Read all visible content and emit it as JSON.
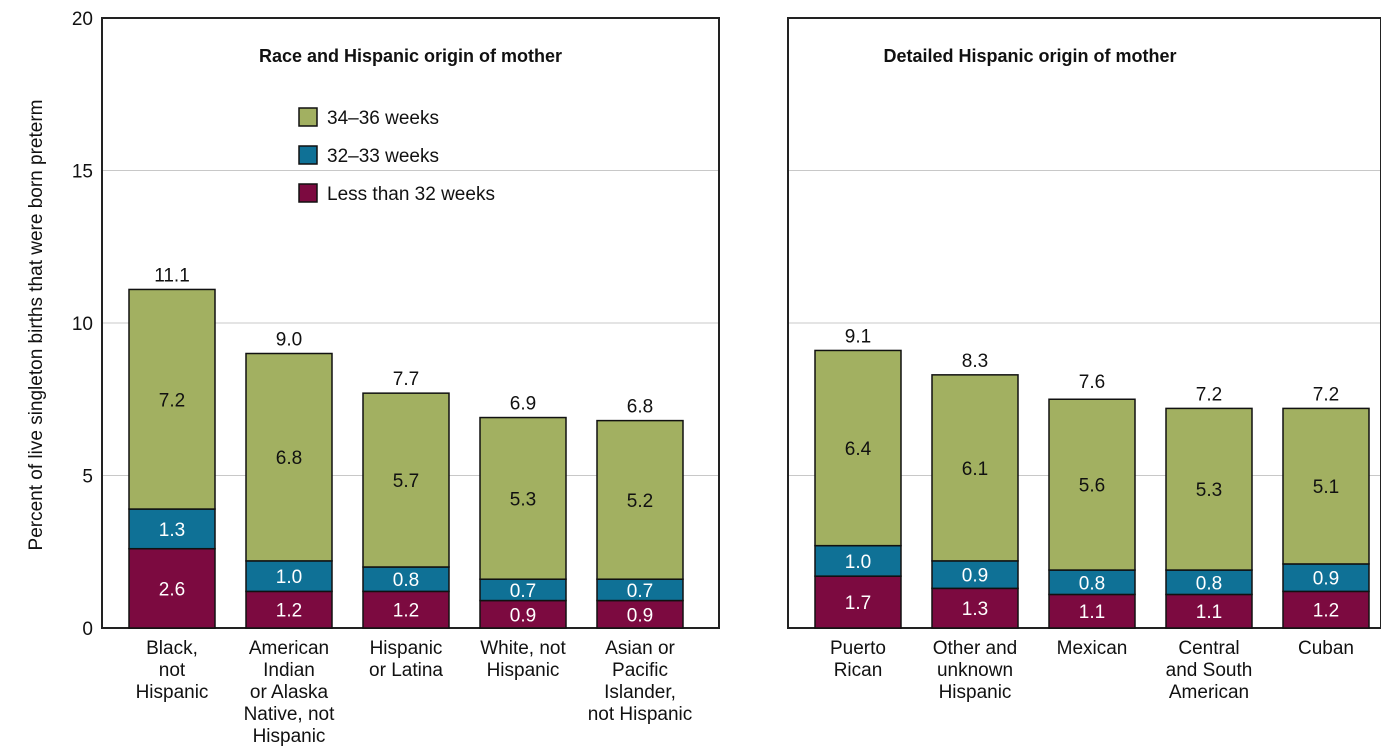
{
  "ylabel": "Percent of live singleton births that were born preterm",
  "yticks": [
    "0",
    "5",
    "10",
    "15",
    "20"
  ],
  "colors": {
    "w34_36": "#a2b061",
    "w32_33": "#0f7196",
    "lt32": "#7c0a40",
    "grid": "#c8c8c8",
    "frame": "#222222"
  },
  "legend": [
    {
      "key": "w34_36",
      "label": "34–36 weeks"
    },
    {
      "key": "w32_33",
      "label": "32–33 weeks"
    },
    {
      "key": "lt32",
      "label": "Less than 32 weeks"
    }
  ],
  "chart_data": [
    {
      "type": "bar",
      "stacked": true,
      "title": "Race and Hispanic origin of mother",
      "ylabel": "Percent of live singleton births that were born preterm",
      "ylim": [
        0,
        20
      ],
      "grid": true,
      "legend_position": "top-center",
      "categories": [
        [
          "Black,",
          "not",
          "Hispanic"
        ],
        [
          "American",
          "Indian",
          "or Alaska",
          "Native, not",
          "Hispanic"
        ],
        [
          "Hispanic",
          "or Latina"
        ],
        [
          "White, not",
          "Hispanic"
        ],
        [
          "Asian or",
          "Pacific",
          "Islander,",
          "not Hispanic"
        ]
      ],
      "series": [
        {
          "name": "Less than 32 weeks",
          "key": "lt32",
          "values": [
            2.6,
            1.2,
            1.2,
            0.9,
            0.9
          ],
          "labels": [
            "2.6",
            "1.2",
            "1.2",
            "0.9",
            "0.9"
          ]
        },
        {
          "name": "32–33 weeks",
          "key": "w32_33",
          "values": [
            1.3,
            1.0,
            0.8,
            0.7,
            0.7
          ],
          "labels": [
            "1.3",
            "1.0",
            "0.8",
            "0.7",
            "0.7"
          ]
        },
        {
          "name": "34–36 weeks",
          "key": "w34_36",
          "values": [
            7.2,
            6.8,
            5.7,
            5.3,
            5.2
          ],
          "labels": [
            "7.2",
            "6.8",
            "5.7",
            "5.3",
            "5.2"
          ]
        }
      ],
      "totals": [
        11.1,
        9.0,
        7.7,
        6.9,
        6.8
      ],
      "total_labels": [
        "11.1",
        "9.0",
        "7.7",
        "6.9",
        "6.8"
      ]
    },
    {
      "type": "bar",
      "stacked": true,
      "title": "Detailed Hispanic origin of mother",
      "ylim": [
        0,
        20
      ],
      "grid": true,
      "categories": [
        [
          "Puerto",
          "Rican"
        ],
        [
          "Other and",
          "unknown",
          "Hispanic"
        ],
        [
          "Mexican"
        ],
        [
          "Central",
          "and South",
          "American"
        ],
        [
          "Cuban"
        ]
      ],
      "series": [
        {
          "name": "Less than 32 weeks",
          "key": "lt32",
          "values": [
            1.7,
            1.3,
            1.1,
            1.1,
            1.2
          ],
          "labels": [
            "1.7",
            "1.3",
            "1.1",
            "1.1",
            "1.2"
          ]
        },
        {
          "name": "32–33 weeks",
          "key": "w32_33",
          "values": [
            1.0,
            0.9,
            0.8,
            0.8,
            0.9
          ],
          "labels": [
            "1.0",
            "0.9",
            "0.8",
            "0.8",
            "0.9"
          ]
        },
        {
          "name": "34–36 weeks",
          "key": "w34_36",
          "values": [
            6.4,
            6.1,
            5.6,
            5.3,
            5.1
          ],
          "labels": [
            "6.4",
            "6.1",
            "5.6",
            "5.3",
            "5.1"
          ]
        }
      ],
      "totals": [
        9.1,
        8.3,
        7.6,
        7.2,
        7.2
      ],
      "total_labels": [
        "9.1",
        "8.3",
        "7.6",
        "7.2",
        "7.2"
      ]
    }
  ]
}
